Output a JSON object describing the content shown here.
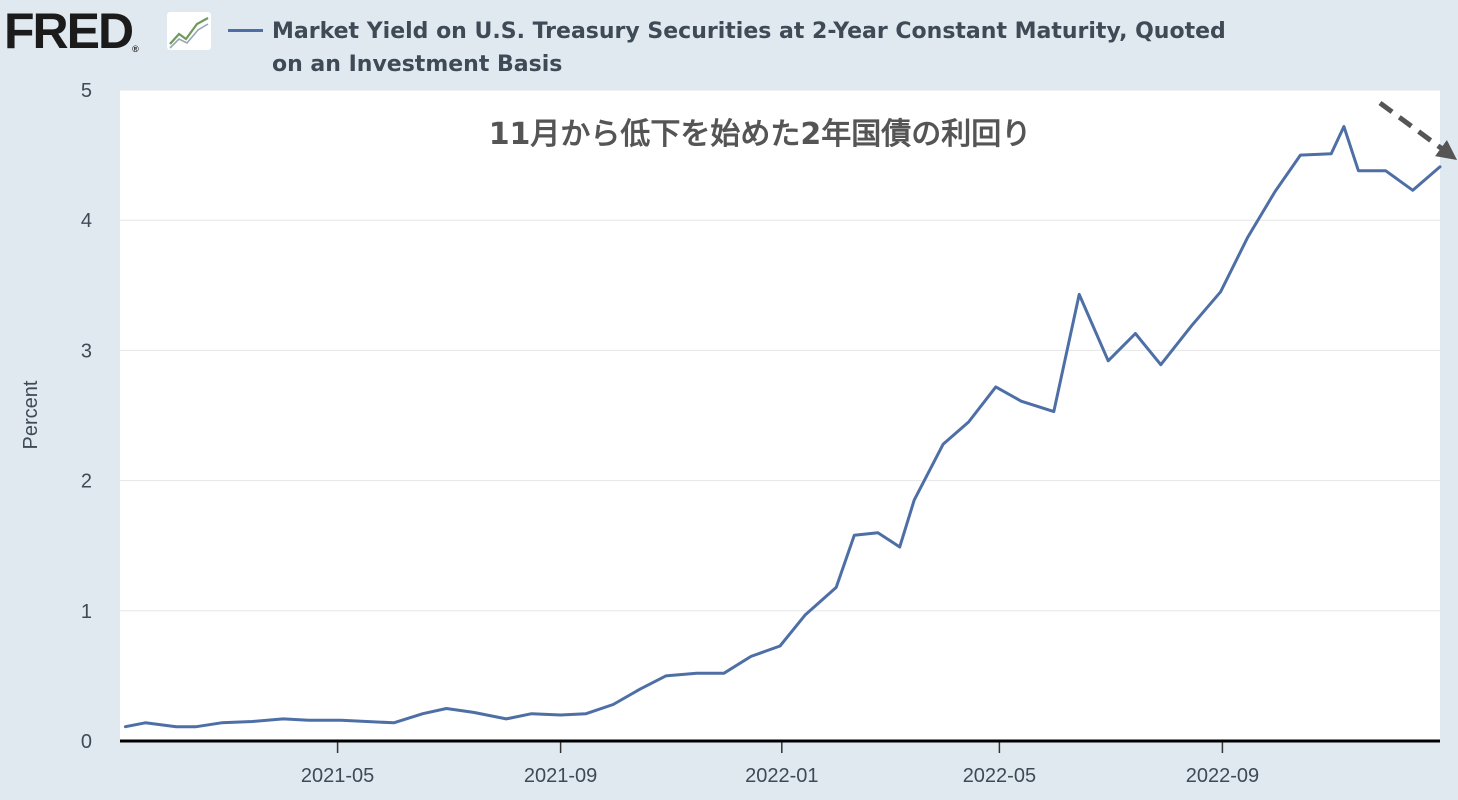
{
  "header": {
    "logo_text": "FRED",
    "logo_mark": "®",
    "logo_icon": "rising-line-chart-icon",
    "series_title": "Market Yield on U.S. Treasury Securities at 2-Year Constant Maturity, Quoted on an Investment Basis"
  },
  "colors": {
    "background": "#e1e9f0",
    "plot_background": "#ffffff",
    "series_line": "#4e6fa6",
    "grid": "#e6e6e6",
    "annotation_text": "#555555",
    "arrow": "#555555",
    "axis": "#000000"
  },
  "chart_data": {
    "type": "line",
    "title": "",
    "annotation": "11月から低下を始めた2年国債の利回り",
    "annotation_arrow": "dashed-down-arrow",
    "xlabel": "",
    "ylabel": "Percent",
    "ylim": [
      0,
      5
    ],
    "yticks": [
      0,
      1,
      2,
      3,
      4,
      5
    ],
    "xlim": [
      "2021-01-01",
      "2022-12-30"
    ],
    "xticks": [
      "2021-05",
      "2021-09",
      "2022-01",
      "2022-05",
      "2022-09"
    ],
    "grid": "horizontal",
    "legend": "top-left",
    "series": [
      {
        "name": "Market Yield on U.S. Treasury Securities at 2-Year Constant Maturity, Quoted on an Investment Basis",
        "points": [
          [
            "2021-01-04",
            0.11
          ],
          [
            "2021-01-15",
            0.14
          ],
          [
            "2021-02-01",
            0.11
          ],
          [
            "2021-02-12",
            0.11
          ],
          [
            "2021-02-26",
            0.14
          ],
          [
            "2021-03-15",
            0.15
          ],
          [
            "2021-04-01",
            0.17
          ],
          [
            "2021-04-15",
            0.16
          ],
          [
            "2021-05-03",
            0.16
          ],
          [
            "2021-05-17",
            0.15
          ],
          [
            "2021-06-01",
            0.14
          ],
          [
            "2021-06-17",
            0.21
          ],
          [
            "2021-06-30",
            0.25
          ],
          [
            "2021-07-15",
            0.22
          ],
          [
            "2021-08-02",
            0.17
          ],
          [
            "2021-08-16",
            0.21
          ],
          [
            "2021-09-01",
            0.2
          ],
          [
            "2021-09-15",
            0.21
          ],
          [
            "2021-09-30",
            0.28
          ],
          [
            "2021-10-15",
            0.4
          ],
          [
            "2021-10-29",
            0.5
          ],
          [
            "2021-11-15",
            0.52
          ],
          [
            "2021-11-30",
            0.52
          ],
          [
            "2021-12-15",
            0.65
          ],
          [
            "2021-12-31",
            0.73
          ],
          [
            "2022-01-14",
            0.97
          ],
          [
            "2022-01-31",
            1.18
          ],
          [
            "2022-02-10",
            1.58
          ],
          [
            "2022-02-23",
            1.6
          ],
          [
            "2022-03-07",
            1.49
          ],
          [
            "2022-03-15",
            1.85
          ],
          [
            "2022-03-31",
            2.28
          ],
          [
            "2022-04-14",
            2.45
          ],
          [
            "2022-04-29",
            2.72
          ],
          [
            "2022-05-13",
            2.61
          ],
          [
            "2022-05-31",
            2.53
          ],
          [
            "2022-06-14",
            3.43
          ],
          [
            "2022-06-30",
            2.92
          ],
          [
            "2022-07-15",
            3.13
          ],
          [
            "2022-07-29",
            2.89
          ],
          [
            "2022-08-15",
            3.19
          ],
          [
            "2022-08-31",
            3.45
          ],
          [
            "2022-09-15",
            3.87
          ],
          [
            "2022-09-30",
            4.22
          ],
          [
            "2022-10-14",
            4.5
          ],
          [
            "2022-10-31",
            4.51
          ],
          [
            "2022-11-07",
            4.72
          ],
          [
            "2022-11-15",
            4.38
          ],
          [
            "2022-11-30",
            4.38
          ],
          [
            "2022-12-15",
            4.23
          ],
          [
            "2022-12-30",
            4.41
          ]
        ]
      }
    ]
  }
}
